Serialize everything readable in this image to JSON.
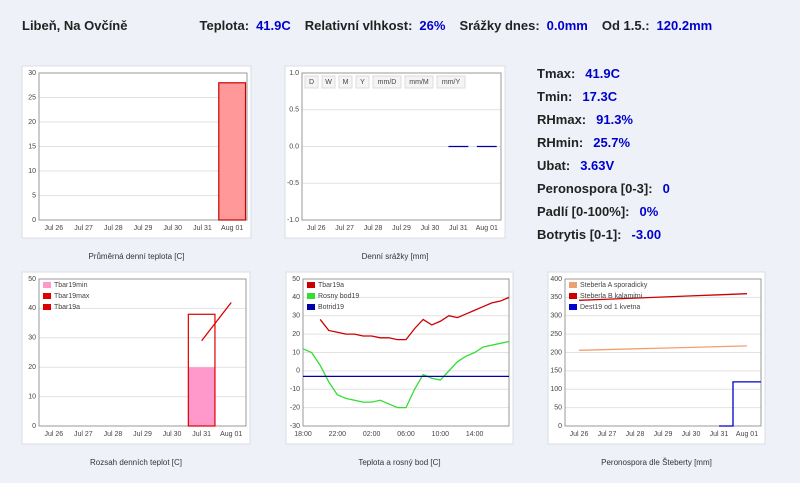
{
  "header": {
    "station": "Libeň, Na Ovčíně",
    "items": [
      {
        "label": "Teplota:",
        "value": "41.9C"
      },
      {
        "label": "Relativní vlhkost:",
        "value": "26%"
      },
      {
        "label": "Srážky dnes:",
        "value": "0.0mm"
      },
      {
        "label": "Od 1.5.:",
        "value": "120.2mm"
      }
    ]
  },
  "stats": [
    {
      "label": "Tmax:",
      "value": "41.9C"
    },
    {
      "label": "Tmin:",
      "value": "17.3C"
    },
    {
      "label": "RHmax:",
      "value": "91.3%"
    },
    {
      "label": "RHmin:",
      "value": "25.7%"
    },
    {
      "label": "Ubat:",
      "value": "3.63V"
    },
    {
      "label": "Peronospora [0-3]:",
      "value": "0"
    },
    {
      "label": "Padlí [0-100%]:",
      "value": "0%"
    },
    {
      "label": "Botrytis [0-1]:",
      "value": "-3.00"
    }
  ],
  "chart_data": [
    {
      "type": "bar",
      "title": "Průměrná denní teplota [C]",
      "categories": [
        "Jul 26",
        "Jul 27",
        "Jul 28",
        "Jul 29",
        "Jul 30",
        "Jul 31",
        "Aug 01"
      ],
      "values": [
        null,
        null,
        null,
        null,
        null,
        null,
        28
      ],
      "color": "#ff9999",
      "edgecolor": "#cc0000",
      "ylim": [
        0,
        30
      ],
      "yticks": [
        0,
        5,
        10,
        15,
        20,
        25,
        30
      ],
      "grid": true
    },
    {
      "type": "line",
      "title": "Denní srážky [mm]",
      "buttons": [
        "D",
        "W",
        "M",
        "Y",
        "mm/D",
        "mm/M",
        "mm/Y"
      ],
      "categories": [
        "Jul 26",
        "Jul 27",
        "Jul 28",
        "Jul 29",
        "Jul 30",
        "Jul 31",
        "Aug 01"
      ],
      "values": [
        null,
        null,
        null,
        null,
        null,
        0,
        0
      ],
      "color": "#0000aa",
      "marker": "dash",
      "ylim": [
        -1,
        1
      ],
      "yticks": [
        {
          "value": -1,
          "label": "-1.0"
        },
        -0.5,
        {
          "value": 0,
          "label": "0.0"
        },
        0.5,
        {
          "value": 1,
          "label": "1.0"
        }
      ],
      "grid": true
    },
    {
      "type": "bar",
      "title": "Rozsah denních teplot [C]",
      "legend": true,
      "categories": [
        "Jul 26",
        "Jul 27",
        "Jul 28",
        "Jul 29",
        "Jul 30",
        "Jul 31",
        "Aug 01"
      ],
      "series": [
        {
          "name": "Tbar19min",
          "color": "#ff99cc",
          "mark": "bar",
          "values": [
            null,
            null,
            null,
            null,
            null,
            20,
            null
          ]
        },
        {
          "name": "Tbar19max",
          "color": "#dd0000",
          "mark": "bar-outline",
          "values": [
            null,
            null,
            null,
            null,
            null,
            38,
            null
          ]
        },
        {
          "name": "Tbar19a",
          "color": "#dd0000",
          "mark": "line",
          "values": [
            null,
            null,
            null,
            null,
            null,
            29,
            42
          ]
        }
      ],
      "ylim": [
        0,
        50
      ],
      "yticks": [
        0,
        10,
        20,
        30,
        40,
        50
      ],
      "grid": true
    },
    {
      "type": "line",
      "title": "Teplota a rosný bod [C]",
      "legend": true,
      "categories": [
        "18:00",
        null,
        null,
        null,
        "22:00",
        null,
        null,
        null,
        "02:00",
        null,
        null,
        null,
        "06:00",
        null,
        null,
        null,
        "10:00",
        null,
        null,
        null,
        "14:00",
        null,
        null,
        null,
        null
      ],
      "series": [
        {
          "name": "Tbar19a",
          "color": "#cc0000",
          "values": [
            null,
            null,
            28,
            22,
            21,
            20,
            20,
            19,
            19,
            18,
            18,
            17,
            17,
            23,
            28,
            25,
            27,
            30,
            29,
            31,
            33,
            35,
            37,
            38,
            40
          ]
        },
        {
          "name": "Rosny bod19",
          "color": "#33dd33",
          "values": [
            12,
            10,
            3,
            -6,
            -13,
            -15,
            -16,
            -17,
            -17,
            -16,
            -18,
            -20,
            -20,
            -10,
            -2,
            -4,
            -5,
            0,
            5,
            8,
            10,
            13,
            14,
            15,
            16
          ]
        },
        {
          "name": "Botrid19",
          "color": "#0000aa",
          "values": [
            -3,
            -3,
            -3,
            -3,
            -3,
            -3,
            -3,
            -3,
            -3,
            -3,
            -3,
            -3,
            -3,
            -3,
            -3,
            -3,
            -3,
            -3,
            -3,
            -3,
            -3,
            -3,
            -3,
            -3,
            -3
          ]
        }
      ],
      "ylim": [
        -30,
        50
      ],
      "yticks": [
        -30,
        -20,
        -10,
        0,
        10,
        20,
        30,
        40,
        50
      ],
      "grid": true
    },
    {
      "type": "line",
      "title": "Peronospora dle Šteberty [mm]",
      "legend": true,
      "categories": [
        "Jul 26",
        "Jul 27",
        "Jul 28",
        "Jul 29",
        "Jul 30",
        "Jul 31",
        "Aug 01"
      ],
      "series": [
        {
          "name": "Steberla A sporadicky",
          "color": "#f0a070",
          "values": [
            206,
            208,
            210,
            212,
            214,
            216,
            218
          ]
        },
        {
          "name": "Steberla B kalamitni",
          "color": "#cc0000",
          "values": [
            342,
            345,
            348,
            351,
            354,
            357,
            360
          ]
        },
        {
          "name": "Dest19 od 1 kvetna",
          "color": "#0000cc",
          "step": true,
          "values": [
            null,
            null,
            null,
            null,
            null,
            0,
            120
          ]
        }
      ],
      "ylim": [
        0,
        400
      ],
      "yticks": [
        0,
        50,
        100,
        150,
        200,
        250,
        300,
        350,
        400
      ],
      "grid": true
    }
  ]
}
